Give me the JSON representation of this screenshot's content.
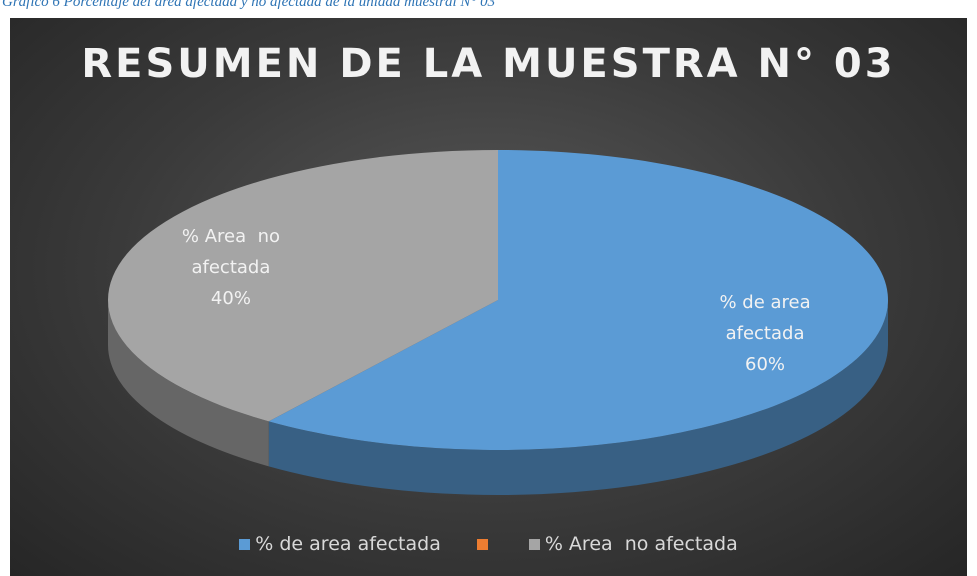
{
  "caption": "Gráfico 6 Porcentaje del área afectada y no afectada de la unidad muestral N° 03",
  "chart_data": {
    "type": "pie",
    "title": "RESUMEN DE LA MUESTRA N° 03",
    "categories": [
      "% de area afectada",
      null,
      "% Area  no afectada"
    ],
    "values": [
      60,
      0,
      40
    ],
    "value_labels": [
      "60%",
      null,
      "40%"
    ],
    "colors": [
      "#5b9bd5",
      "#ed7d31",
      "#a5a5a5"
    ],
    "legend": "bottom"
  }
}
